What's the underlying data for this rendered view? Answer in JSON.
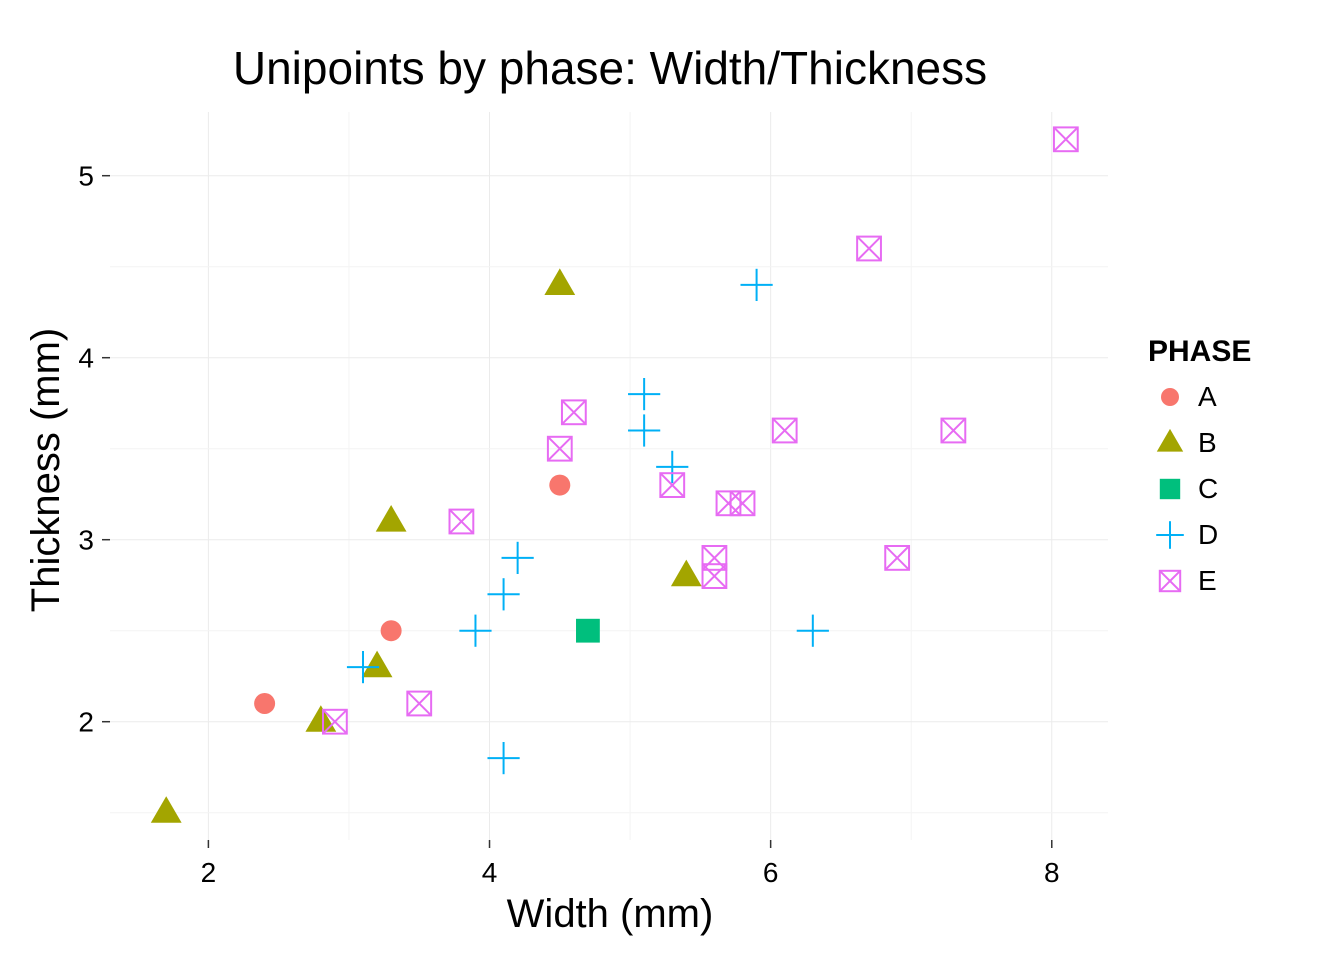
{
  "chart_data": {
    "type": "scatter",
    "title": "Unipoints by phase: Width/Thickness",
    "xlabel": "Width (mm)",
    "ylabel": "Thickness (mm)",
    "xlim": [
      1.3,
      8.4
    ],
    "ylim": [
      1.35,
      5.35
    ],
    "x_ticks": [
      2,
      4,
      6,
      8
    ],
    "y_ticks": [
      2,
      3,
      4,
      5
    ],
    "grid": true,
    "legend_position": "right",
    "legend_title": "PHASE",
    "series": [
      {
        "name": "A",
        "shape": "circle",
        "color": "#F8766D",
        "points": [
          [
            2.4,
            2.1
          ],
          [
            3.3,
            2.5
          ],
          [
            4.5,
            3.3
          ]
        ]
      },
      {
        "name": "B",
        "shape": "triangle",
        "color": "#A3A500",
        "points": [
          [
            1.7,
            1.5
          ],
          [
            2.8,
            2.0
          ],
          [
            3.2,
            2.3
          ],
          [
            3.3,
            3.1
          ],
          [
            4.5,
            4.4
          ],
          [
            5.4,
            2.8
          ]
        ]
      },
      {
        "name": "C",
        "shape": "square",
        "color": "#00BF7D",
        "points": [
          [
            4.7,
            2.5
          ]
        ]
      },
      {
        "name": "D",
        "shape": "plus",
        "color": "#00B0F6",
        "points": [
          [
            3.1,
            2.3
          ],
          [
            3.9,
            2.5
          ],
          [
            4.1,
            2.7
          ],
          [
            4.1,
            1.8
          ],
          [
            4.2,
            2.9
          ],
          [
            5.1,
            3.8
          ],
          [
            5.1,
            3.6
          ],
          [
            5.3,
            3.4
          ],
          [
            5.9,
            4.4
          ],
          [
            6.3,
            2.5
          ]
        ]
      },
      {
        "name": "E",
        "shape": "boxcross",
        "color": "#E76BF3",
        "points": [
          [
            2.9,
            2.0
          ],
          [
            3.5,
            2.1
          ],
          [
            3.8,
            3.1
          ],
          [
            4.5,
            3.5
          ],
          [
            4.6,
            3.7
          ],
          [
            5.3,
            3.3
          ],
          [
            5.6,
            2.9
          ],
          [
            5.6,
            2.8
          ],
          [
            5.7,
            3.2
          ],
          [
            5.8,
            3.2
          ],
          [
            6.1,
            3.6
          ],
          [
            6.7,
            4.6
          ],
          [
            6.9,
            2.9
          ],
          [
            7.3,
            3.6
          ],
          [
            8.1,
            5.2
          ]
        ]
      }
    ]
  }
}
